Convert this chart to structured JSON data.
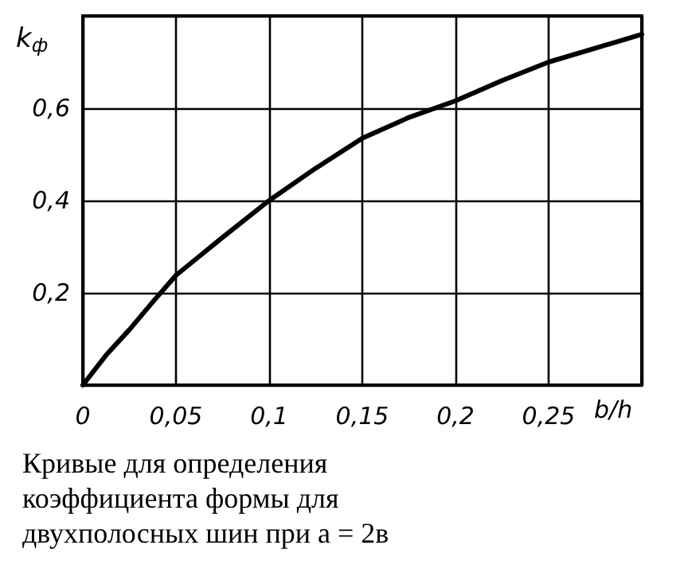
{
  "chart_data": {
    "type": "line",
    "xlabel": "b/h",
    "ylabel": "k$_{ф}$",
    "x": [
      0,
      0.0125,
      0.025,
      0.0375,
      0.05,
      0.075,
      0.1,
      0.125,
      0.15,
      0.175,
      0.2,
      0.225,
      0.25,
      0.275,
      0.3
    ],
    "series": [
      {
        "color": "#000000",
        "values": [
          0,
          0.065,
          0.12,
          0.18,
          0.238,
          0.32,
          0.4,
          0.47,
          0.535,
          0.58,
          0.616,
          0.66,
          0.7,
          0.73,
          0.76
        ]
      }
    ],
    "xlim": [
      0,
      0.3
    ],
    "ylim": [
      0,
      0.8
    ],
    "xticks": [
      0,
      {
        "value": 0.05,
        "label": "0,05"
      },
      {
        "value": 0.1,
        "label": "0,1"
      },
      {
        "value": 0.15,
        "label": "0,15"
      },
      {
        "value": 0.2,
        "label": "0,2"
      },
      {
        "value": 0.25,
        "label": "0,25"
      },
      {
        "value": 0.3,
        "label": null
      }
    ],
    "yticks": [
      {
        "value": 0,
        "label": null
      },
      {
        "value": 0.2,
        "label": "0,2"
      },
      {
        "value": 0.4,
        "label": "0,4"
      },
      {
        "value": 0.6,
        "label": "0,6"
      },
      {
        "value": 0.8,
        "label": null
      }
    ],
    "grid": true,
    "marker": "none",
    "line_style": "solid",
    "annotations": [
      "Кривые для определения коэффициента формы для двухполосных шин при a = 2в"
    ]
  }
}
